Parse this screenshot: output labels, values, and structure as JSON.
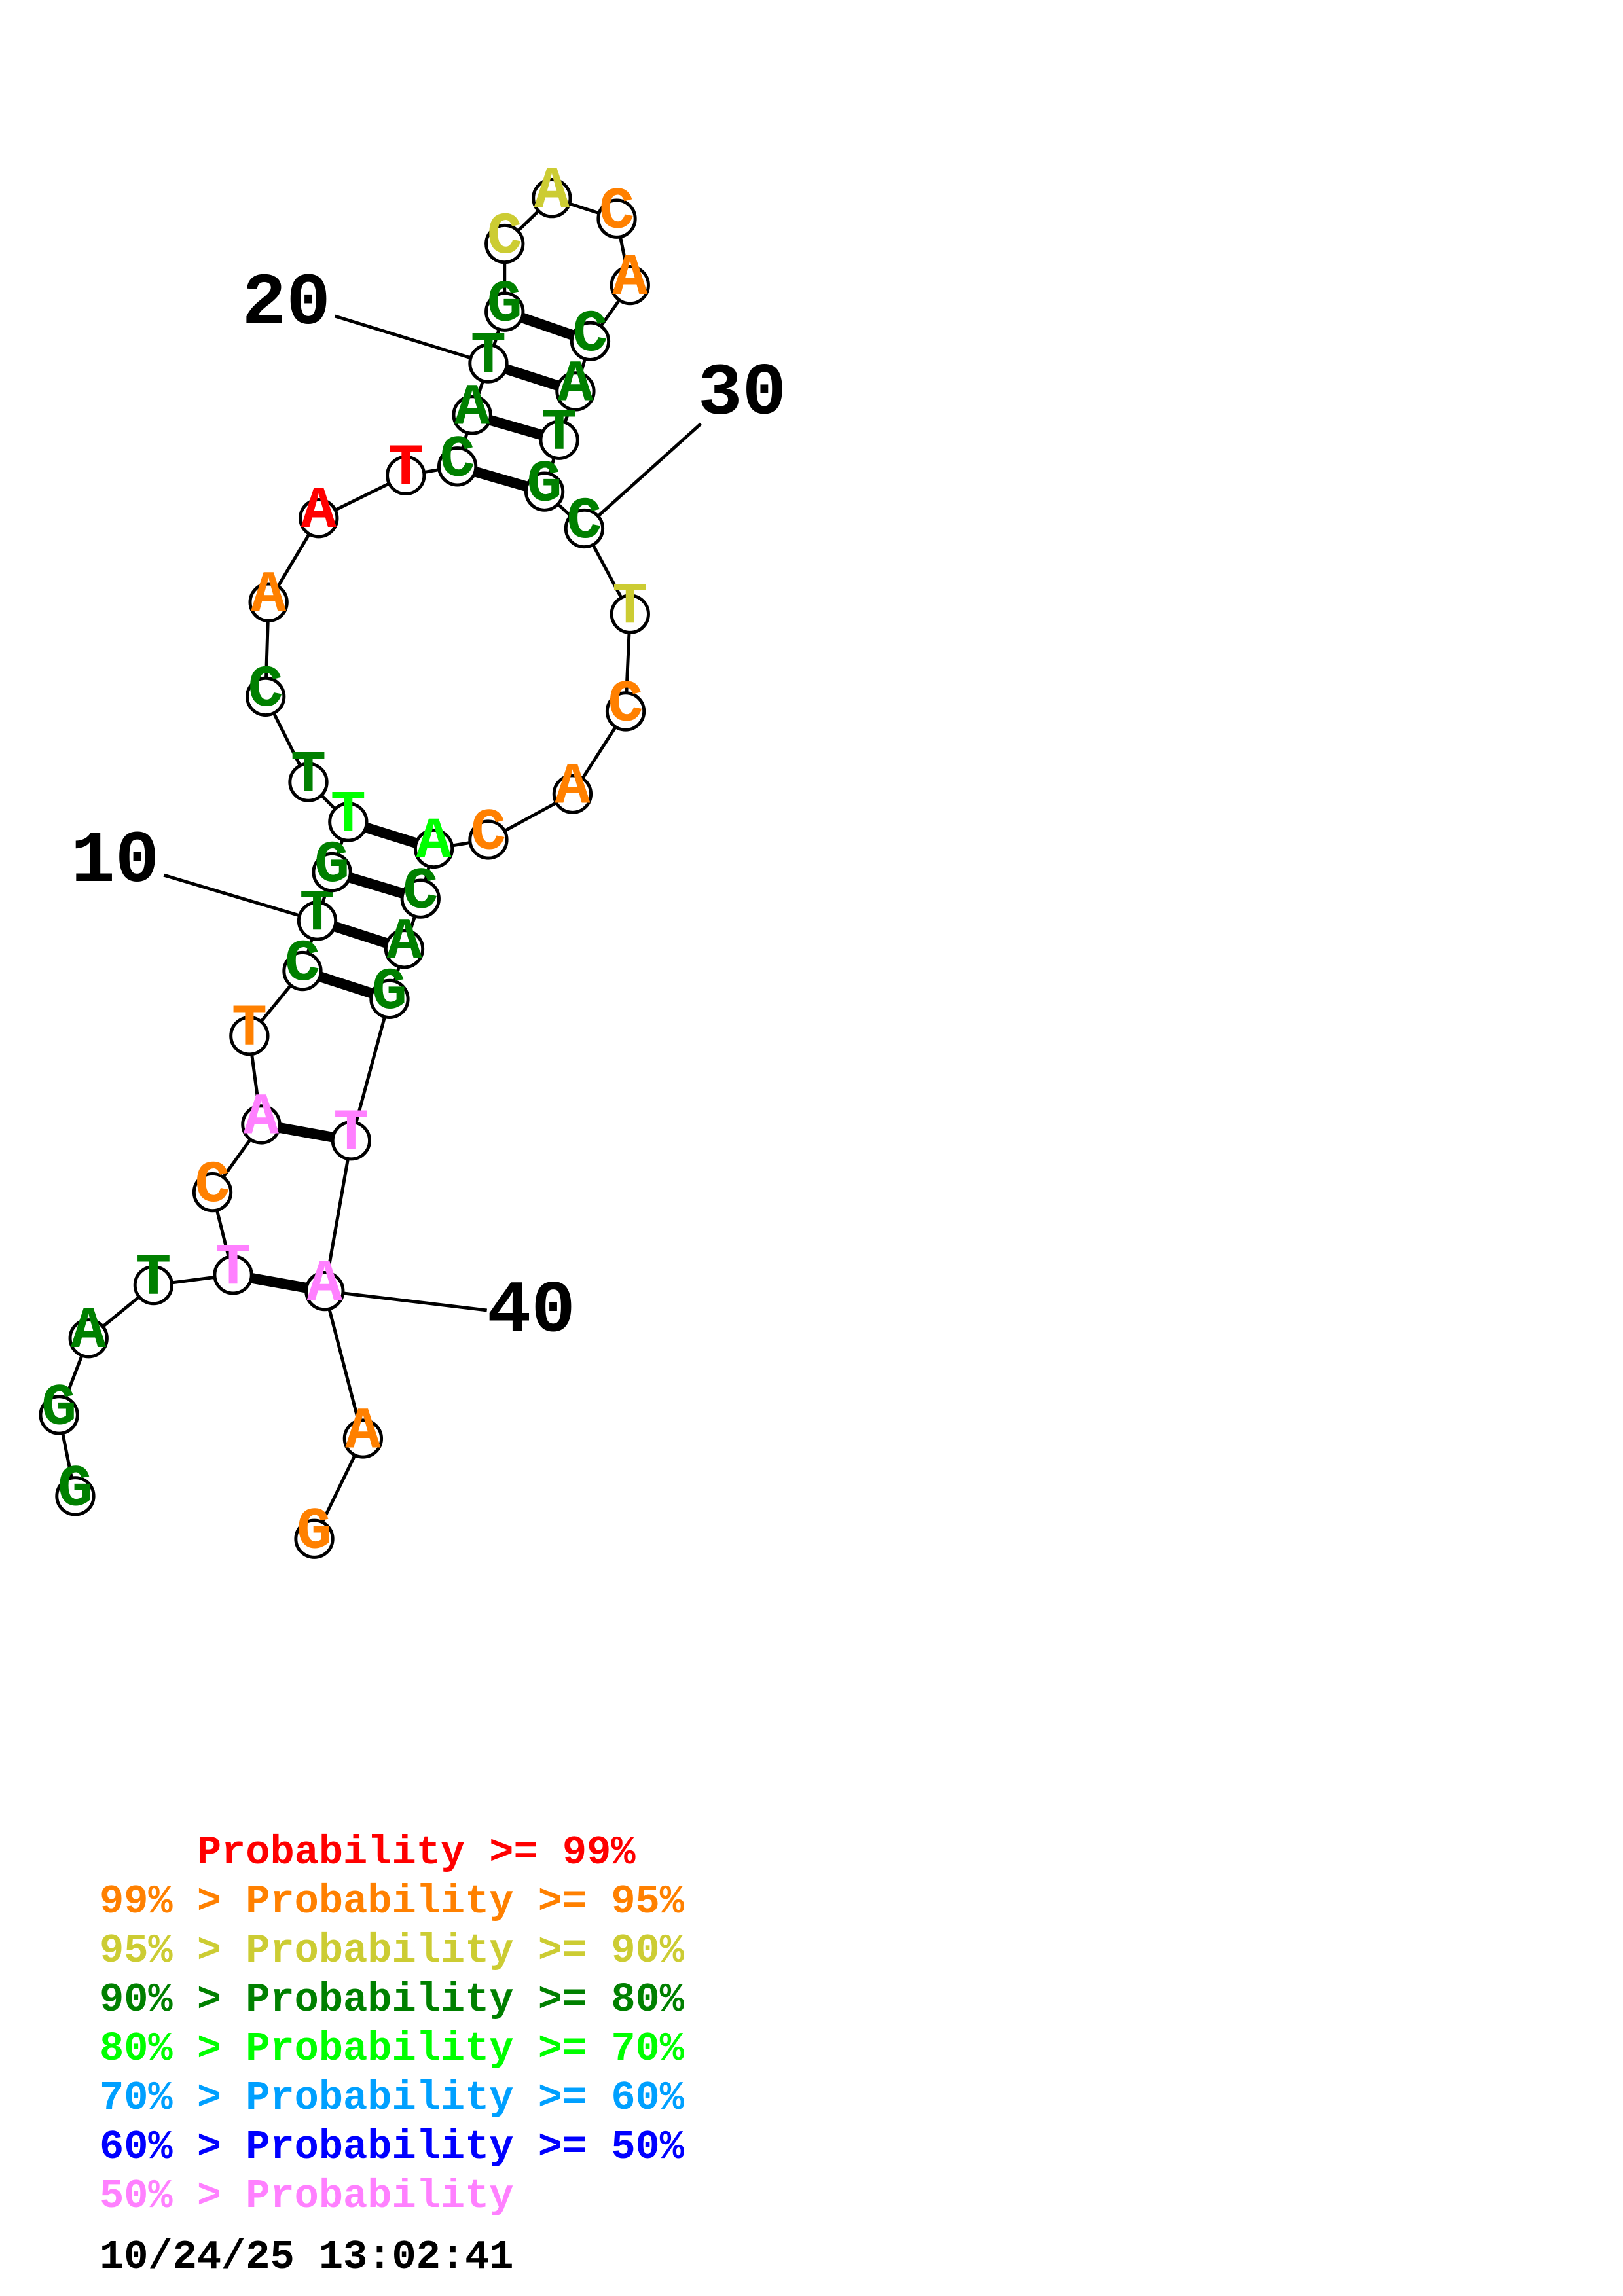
{
  "colors": {
    "p99": "#ff0000",
    "p95": "#ff8000",
    "p90": "#cccc33",
    "p80": "#008000",
    "p70": "#00ff00",
    "p60": "#00a0ff",
    "p50": "#0000ff",
    "plt50": "#ff80ff"
  },
  "sequence": [
    {
      "index": 1,
      "base": "G",
      "color": "p80"
    },
    {
      "index": 2,
      "base": "G",
      "color": "p80"
    },
    {
      "index": 3,
      "base": "A",
      "color": "p80"
    },
    {
      "index": 4,
      "base": "T",
      "color": "p80"
    },
    {
      "index": 5,
      "base": "T",
      "color": "plt50"
    },
    {
      "index": 6,
      "base": "C",
      "color": "p95"
    },
    {
      "index": 7,
      "base": "A",
      "color": "plt50"
    },
    {
      "index": 8,
      "base": "T",
      "color": "p95"
    },
    {
      "index": 9,
      "base": "C",
      "color": "p80"
    },
    {
      "index": 10,
      "base": "T",
      "color": "p80"
    },
    {
      "index": 11,
      "base": "G",
      "color": "p80"
    },
    {
      "index": 12,
      "base": "T",
      "color": "p70"
    },
    {
      "index": 13,
      "base": "T",
      "color": "p80"
    },
    {
      "index": 14,
      "base": "C",
      "color": "p80"
    },
    {
      "index": 15,
      "base": "A",
      "color": "p95"
    },
    {
      "index": 16,
      "base": "A",
      "color": "p99"
    },
    {
      "index": 17,
      "base": "T",
      "color": "p99"
    },
    {
      "index": 18,
      "base": "C",
      "color": "p80"
    },
    {
      "index": 19,
      "base": "A",
      "color": "p80"
    },
    {
      "index": 20,
      "base": "T",
      "color": "p80"
    },
    {
      "index": 21,
      "base": "G",
      "color": "p80"
    },
    {
      "index": 22,
      "base": "C",
      "color": "p90"
    },
    {
      "index": 23,
      "base": "A",
      "color": "p90"
    },
    {
      "index": 24,
      "base": "C",
      "color": "p95"
    },
    {
      "index": 25,
      "base": "A",
      "color": "p95"
    },
    {
      "index": 26,
      "base": "C",
      "color": "p80"
    },
    {
      "index": 27,
      "base": "A",
      "color": "p80"
    },
    {
      "index": 28,
      "base": "T",
      "color": "p80"
    },
    {
      "index": 29,
      "base": "G",
      "color": "p80"
    },
    {
      "index": 30,
      "base": "C",
      "color": "p80"
    },
    {
      "index": 31,
      "base": "T",
      "color": "p90"
    },
    {
      "index": 32,
      "base": "C",
      "color": "p95"
    },
    {
      "index": 33,
      "base": "A",
      "color": "p95"
    },
    {
      "index": 34,
      "base": "C",
      "color": "p95"
    },
    {
      "index": 35,
      "base": "A",
      "color": "p70"
    },
    {
      "index": 36,
      "base": "C",
      "color": "p80"
    },
    {
      "index": 37,
      "base": "A",
      "color": "p80"
    },
    {
      "index": 38,
      "base": "G",
      "color": "p80"
    },
    {
      "index": 39,
      "base": "T",
      "color": "plt50"
    },
    {
      "index": 40,
      "base": "A",
      "color": "plt50"
    },
    {
      "index": 41,
      "base": "A",
      "color": "p95"
    },
    {
      "index": 42,
      "base": "G",
      "color": "p95"
    }
  ],
  "pairs": [
    [
      5,
      40
    ],
    [
      7,
      39
    ],
    [
      9,
      38
    ],
    [
      10,
      37
    ],
    [
      11,
      36
    ],
    [
      12,
      35
    ],
    [
      18,
      29
    ],
    [
      19,
      28
    ],
    [
      20,
      27
    ],
    [
      21,
      26
    ]
  ],
  "tick_labels": [
    {
      "index": 10,
      "text": "10"
    },
    {
      "index": 20,
      "text": "20"
    },
    {
      "index": 30,
      "text": "30"
    },
    {
      "index": 40,
      "text": "40"
    }
  ],
  "legend": [
    {
      "prefix": "    ",
      "text": "Probability >= 99%",
      "color": "p99"
    },
    {
      "prefix": "99% > ",
      "text": "Probability >= 95%",
      "color": "p95"
    },
    {
      "prefix": "95% > ",
      "text": "Probability >= 90%",
      "color": "p90"
    },
    {
      "prefix": "90% > ",
      "text": "Probability >= 80%",
      "color": "p80"
    },
    {
      "prefix": "80% > ",
      "text": "Probability >= 70%",
      "color": "p70"
    },
    {
      "prefix": "70% > ",
      "text": "Probability >= 60%",
      "color": "p60"
    },
    {
      "prefix": "60% > ",
      "text": "Probability >= 50%",
      "color": "p50"
    },
    {
      "prefix": "50% > ",
      "text": "Probability",
      "color": "plt50"
    }
  ],
  "timestamp": "10/24/25 13:02:41"
}
